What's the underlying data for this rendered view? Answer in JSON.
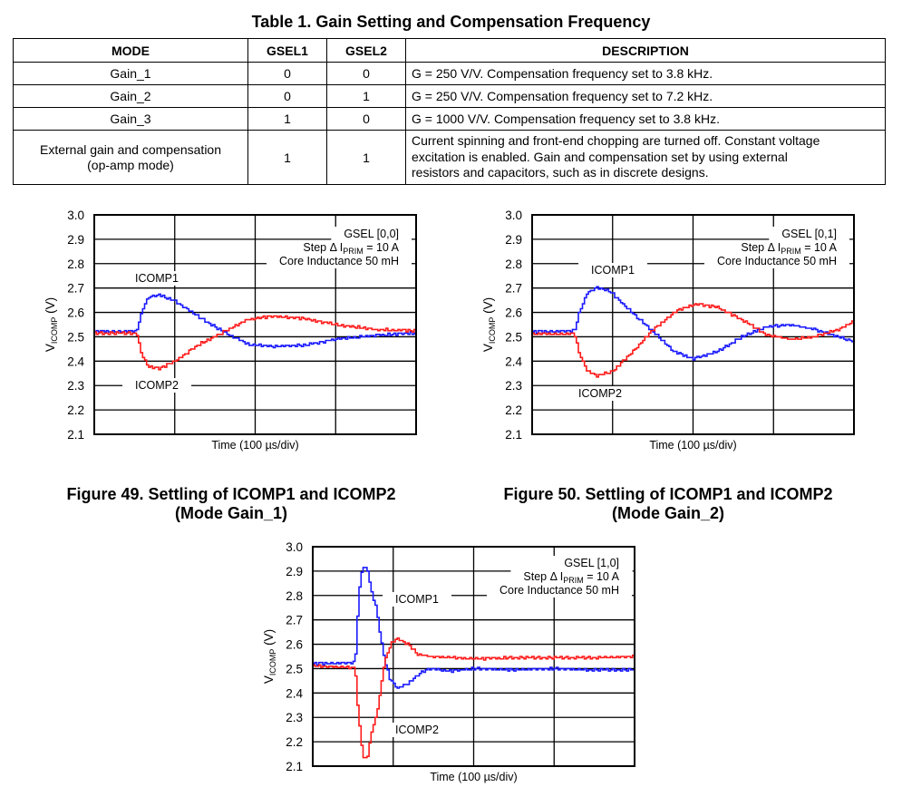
{
  "table": {
    "title": "Table 1. Gain Setting and Compensation Frequency",
    "headers": [
      "MODE",
      "GSEL1",
      "GSEL2",
      "DESCRIPTION"
    ],
    "rows": [
      [
        "Gain_1",
        "0",
        "0",
        "G = 250 V/V. Compensation frequency set to 3.8 kHz."
      ],
      [
        "Gain_2",
        "0",
        "1",
        "G = 250 V/V. Compensation frequency set to 7.2 kHz."
      ],
      [
        "Gain_3",
        "1",
        "0",
        "G = 1000 V/V. Compensation frequency set to 3.8 kHz."
      ],
      [
        "External gain and compensation",
        "1",
        "1",
        "Current spinning and front-end chopping are turned off. Constant voltage"
      ]
    ],
    "row4_mode_line2": "(op-amp mode)",
    "row4_desc_line2": "excitation is enabled. Gain and compensation set by using external",
    "row4_desc_line3": "resistors and capacitors, such as in discrete designs."
  },
  "captions": {
    "fig49_line1": "Figure 49.  Settling of ICOMP1 and ICOMP2",
    "fig49_line2": "(Mode Gain_1)",
    "fig50_line1": "Figure 50.  Settling of ICOMP1 and ICOMP2",
    "fig50_line2": "(Mode Gain_2)"
  },
  "chart_data": [
    {
      "type": "line",
      "xlabel": "Time (100 µs/div)",
      "ylabel": {
        "main": "V",
        "sub": "ICOMP",
        "unit": " (V)"
      },
      "xlim": [
        0,
        400
      ],
      "ylim": [
        2.1,
        3.0
      ],
      "yticks": [
        "3.0",
        "2.9",
        "2.8",
        "2.7",
        "2.6",
        "2.5",
        "2.4",
        "2.3",
        "2.2",
        "2.1"
      ],
      "grid": true,
      "annotation": {
        "gsel": "GSEL [0,0]",
        "step_pre": "Step  Δ I",
        "step_sub": "PRIM",
        "step_post": " = 10 A",
        "core": "Core Inductance 50 mH"
      },
      "series": [
        {
          "name": "ICOMP1",
          "color": "#1a1aff",
          "points": [
            [
              0,
              2.522
            ],
            [
              52,
              2.522
            ],
            [
              58,
              2.6
            ],
            [
              66,
              2.66
            ],
            [
              80,
              2.672
            ],
            [
              100,
              2.645
            ],
            [
              130,
              2.58
            ],
            [
              160,
              2.52
            ],
            [
              190,
              2.47
            ],
            [
              220,
              2.46
            ],
            [
              260,
              2.465
            ],
            [
              300,
              2.49
            ],
            [
              350,
              2.507
            ],
            [
              400,
              2.515
            ]
          ]
        },
        {
          "name": "ICOMP2",
          "color": "#ff1a1a",
          "points": [
            [
              0,
              2.515
            ],
            [
              52,
              2.515
            ],
            [
              58,
              2.43
            ],
            [
              66,
              2.38
            ],
            [
              80,
              2.37
            ],
            [
              100,
              2.4
            ],
            [
              130,
              2.47
            ],
            [
              160,
              2.52
            ],
            [
              190,
              2.57
            ],
            [
              220,
              2.585
            ],
            [
              260,
              2.575
            ],
            [
              300,
              2.55
            ],
            [
              350,
              2.53
            ],
            [
              400,
              2.525
            ]
          ]
        }
      ]
    },
    {
      "type": "line",
      "xlabel": "Time (100 µs/div)",
      "ylabel": {
        "main": "V",
        "sub": "ICOMP",
        "unit": " (V)"
      },
      "xlim": [
        0,
        400
      ],
      "ylim": [
        2.1,
        3.0
      ],
      "yticks": [
        "3.0",
        "2.9",
        "2.8",
        "2.7",
        "2.6",
        "2.5",
        "2.4",
        "2.3",
        "2.2",
        "2.1"
      ],
      "grid": true,
      "annotation": {
        "gsel": "GSEL [0,1]",
        "step_pre": "Step  Δ I",
        "step_sub": "PRIM",
        "step_post": " = 10 A",
        "core": "Core Inductance 50 mH"
      },
      "series": [
        {
          "name": "ICOMP1",
          "color": "#1a1aff",
          "points": [
            [
              0,
              2.52
            ],
            [
              52,
              2.525
            ],
            [
              58,
              2.6
            ],
            [
              68,
              2.68
            ],
            [
              80,
              2.703
            ],
            [
              95,
              2.69
            ],
            [
              120,
              2.61
            ],
            [
              150,
              2.52
            ],
            [
              175,
              2.44
            ],
            [
              200,
              2.41
            ],
            [
              230,
              2.44
            ],
            [
              260,
              2.5
            ],
            [
              290,
              2.54
            ],
            [
              320,
              2.55
            ],
            [
              350,
              2.53
            ],
            [
              380,
              2.5
            ],
            [
              400,
              2.48
            ]
          ]
        },
        {
          "name": "ICOMP2",
          "color": "#ff1a1a",
          "points": [
            [
              0,
              2.512
            ],
            [
              52,
              2.512
            ],
            [
              58,
              2.43
            ],
            [
              68,
              2.36
            ],
            [
              80,
              2.34
            ],
            [
              100,
              2.36
            ],
            [
              125,
              2.44
            ],
            [
              150,
              2.53
            ],
            [
              180,
              2.61
            ],
            [
              205,
              2.635
            ],
            [
              230,
              2.62
            ],
            [
              260,
              2.57
            ],
            [
              290,
              2.51
            ],
            [
              320,
              2.49
            ],
            [
              350,
              2.5
            ],
            [
              380,
              2.53
            ],
            [
              400,
              2.565
            ]
          ]
        }
      ]
    },
    {
      "type": "line",
      "xlabel": "Time (100 µs/div)",
      "ylabel": {
        "main": "V",
        "sub": "ICOMP",
        "unit": " (V)"
      },
      "xlim": [
        0,
        400
      ],
      "ylim": [
        2.1,
        3.0
      ],
      "yticks": [
        "3.0",
        "2.9",
        "2.8",
        "2.7",
        "2.6",
        "2.5",
        "2.4",
        "2.3",
        "2.2",
        "2.1"
      ],
      "grid": true,
      "annotation": {
        "gsel": "GSEL [1,0]",
        "step_pre": "Step  Δ I",
        "step_sub": "PRIM",
        "step_post": " = 10 A",
        "core": "Core Inductance 50 mH"
      },
      "series": [
        {
          "name": "ICOMP1",
          "color": "#1a1aff",
          "points": [
            [
              0,
              2.52
            ],
            [
              52,
              2.525
            ],
            [
              54,
              2.67
            ],
            [
              57,
              2.82
            ],
            [
              61,
              2.92
            ],
            [
              67,
              2.91
            ],
            [
              72,
              2.82
            ],
            [
              78,
              2.75
            ],
            [
              84,
              2.62
            ],
            [
              89,
              2.53
            ],
            [
              95,
              2.46
            ],
            [
              104,
              2.42
            ],
            [
              118,
              2.44
            ],
            [
              132,
              2.48
            ],
            [
              145,
              2.5
            ],
            [
              170,
              2.49
            ],
            [
              200,
              2.5
            ],
            [
              250,
              2.495
            ],
            [
              300,
              2.5
            ],
            [
              350,
              2.495
            ],
            [
              400,
              2.495
            ]
          ]
        },
        {
          "name": "ICOMP2",
          "color": "#ff1a1a",
          "points": [
            [
              0,
              2.512
            ],
            [
              52,
              2.505
            ],
            [
              54,
              2.38
            ],
            [
              58,
              2.25
            ],
            [
              62,
              2.13
            ],
            [
              68,
              2.14
            ],
            [
              72,
              2.24
            ],
            [
              78,
              2.3
            ],
            [
              83,
              2.4
            ],
            [
              88,
              2.52
            ],
            [
              96,
              2.6
            ],
            [
              104,
              2.625
            ],
            [
              118,
              2.6
            ],
            [
              130,
              2.56
            ],
            [
              145,
              2.55
            ],
            [
              200,
              2.54
            ],
            [
              250,
              2.545
            ],
            [
              300,
              2.545
            ],
            [
              350,
              2.545
            ],
            [
              400,
              2.55
            ]
          ]
        }
      ]
    }
  ]
}
